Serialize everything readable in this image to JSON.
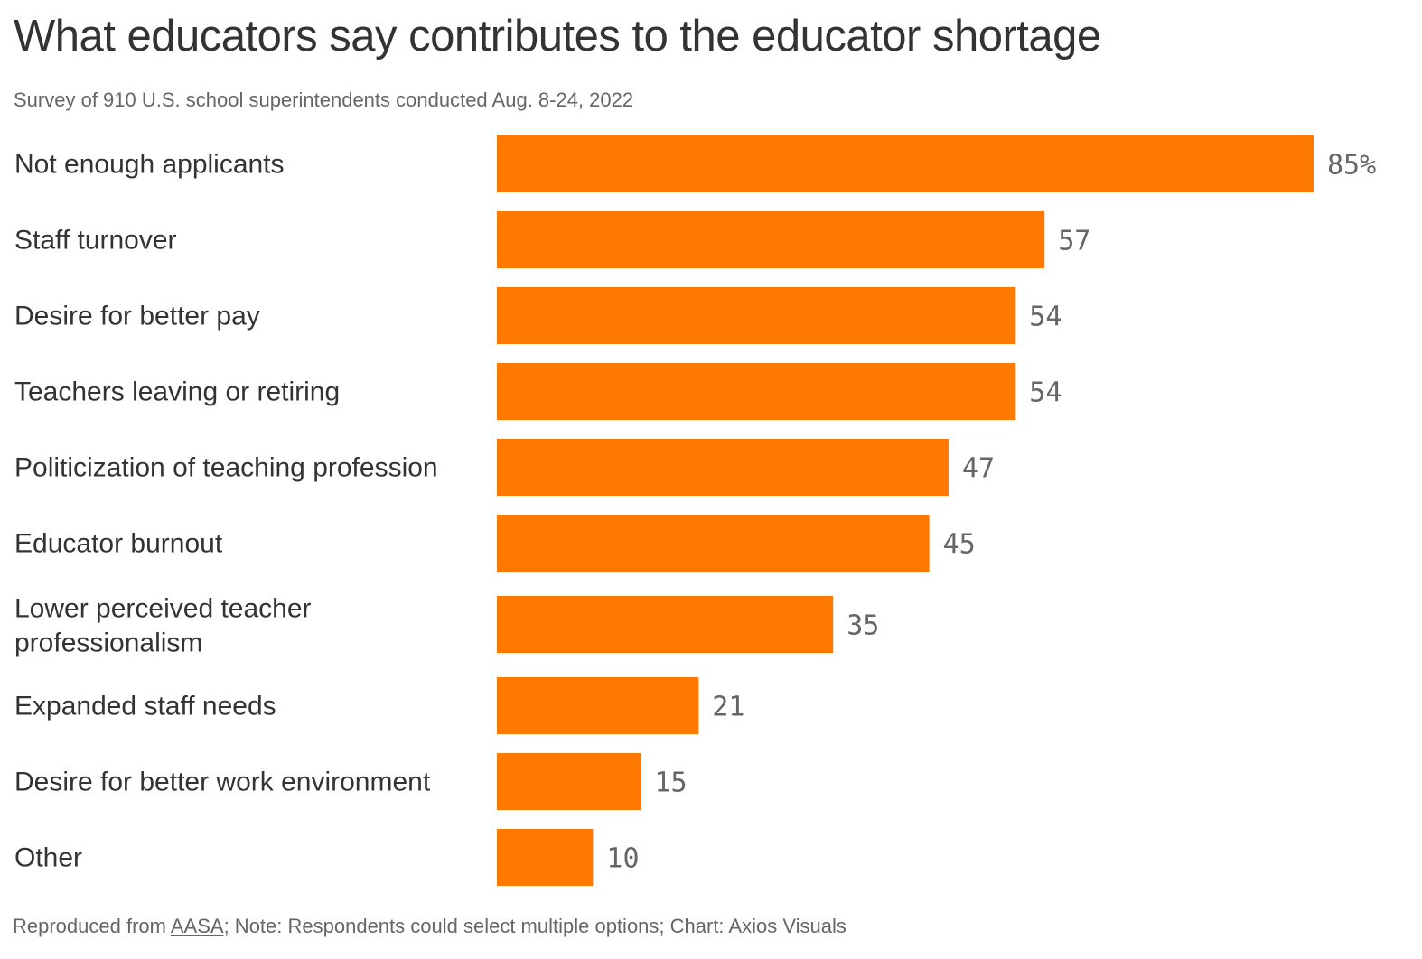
{
  "title": "What educators say contributes to the educator shortage",
  "subtitle": "Survey of 910 U.S. school superintendents conducted Aug. 8-24, 2022",
  "footer": {
    "prefix": "Reproduced from ",
    "source_link": "AASA",
    "rest": "; Note: Respondents could select multiple options; Chart: Axios Visuals"
  },
  "colors": {
    "bar": "#ff7900",
    "label_text": "#333333",
    "value_text": "#666666"
  },
  "chart_data": {
    "type": "bar",
    "orientation": "horizontal",
    "value_suffix_first": "%",
    "xlim": [
      0,
      85
    ],
    "categories": [
      [
        "Not enough applicants"
      ],
      [
        "Staff turnover"
      ],
      [
        "Desire for better pay"
      ],
      [
        "Teachers leaving or retiring"
      ],
      [
        "Politicization of teaching profession"
      ],
      [
        "Educator burnout"
      ],
      [
        "Lower perceived teacher",
        "professionalism"
      ],
      [
        "Expanded staff needs"
      ],
      [
        "Desire for better work environment"
      ],
      [
        "Other"
      ]
    ],
    "values": [
      85,
      57,
      54,
      54,
      47,
      45,
      35,
      21,
      15,
      10
    ],
    "value_labels": [
      "85%",
      "57",
      "54",
      "54",
      "47",
      "45",
      "35",
      "21",
      "15",
      "10"
    ]
  }
}
